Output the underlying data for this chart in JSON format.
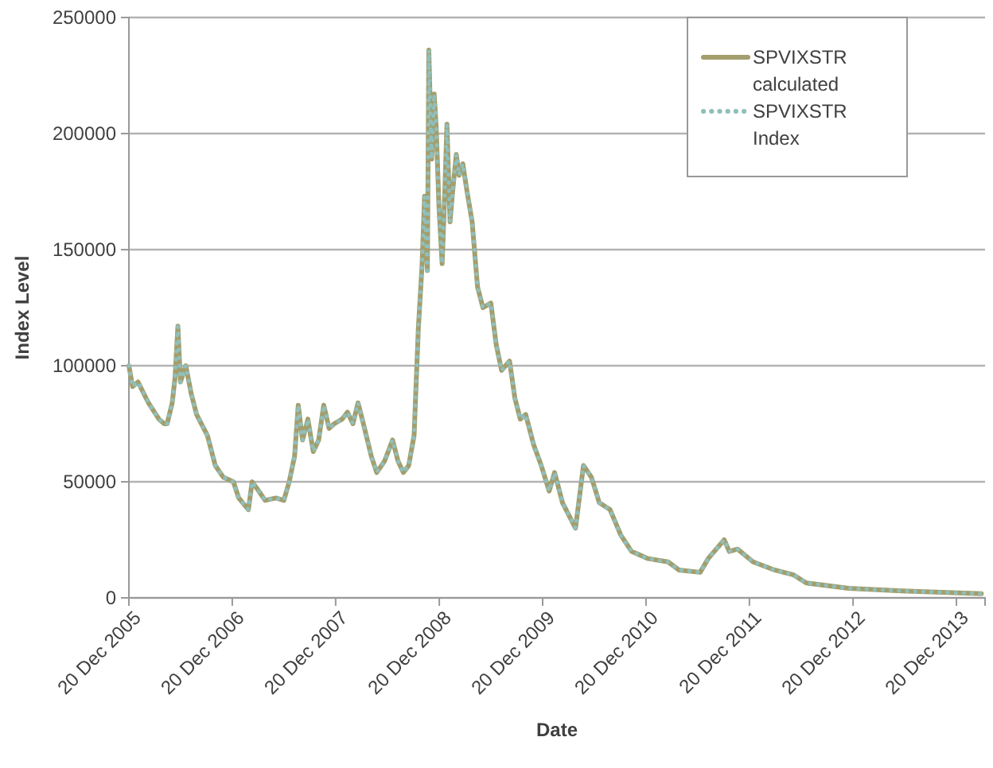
{
  "chart_data": {
    "type": "line",
    "xlabel": "Date",
    "ylabel": "Index Level",
    "x": [
      "2005-12-20",
      "2006-01-02",
      "2006-01-21",
      "2006-02-27",
      "2006-04-05",
      "2006-04-24",
      "2006-05-04",
      "2006-05-22",
      "2006-06-01",
      "2006-06-11",
      "2006-06-20",
      "2006-07-09",
      "2006-07-28",
      "2006-08-16",
      "2006-09-23",
      "2006-10-21",
      "2006-11-18",
      "2006-12-24",
      "2007-01-12",
      "2007-02-15",
      "2007-02-28",
      "2007-03-18",
      "2007-04-15",
      "2007-05-23",
      "2007-06-20",
      "2007-07-09",
      "2007-07-28",
      "2007-08-10",
      "2007-08-25",
      "2007-09-13",
      "2007-10-02",
      "2007-10-21",
      "2007-11-08",
      "2007-11-27",
      "2007-12-15",
      "2008-01-12",
      "2008-01-31",
      "2008-02-19",
      "2008-03-08",
      "2008-03-27",
      "2008-04-24",
      "2008-05-13",
      "2008-06-10",
      "2008-07-08",
      "2008-07-27",
      "2008-08-15",
      "2008-09-03",
      "2008-09-22",
      "2008-10-07",
      "2008-10-20",
      "2008-10-29",
      "2008-11-08",
      "2008-11-13",
      "2008-11-23",
      "2008-12-02",
      "2008-12-09",
      "2008-12-19",
      "2008-12-30",
      "2009-01-08",
      "2009-01-16",
      "2009-01-27",
      "2009-02-05",
      "2009-02-18",
      "2009-02-28",
      "2009-03-13",
      "2009-03-28",
      "2009-04-15",
      "2009-05-04",
      "2009-05-23",
      "2009-06-20",
      "2009-07-09",
      "2009-07-28",
      "2009-08-25",
      "2009-09-13",
      "2009-10-02",
      "2009-10-21",
      "2009-11-18",
      "2009-12-15",
      "2010-01-12",
      "2010-01-31",
      "2010-02-28",
      "2010-04-15",
      "2010-05-13",
      "2010-06-10",
      "2010-07-08",
      "2010-08-15",
      "2010-09-22",
      "2010-10-30",
      "2010-12-24",
      "2011-03-08",
      "2011-04-15",
      "2011-06-29",
      "2011-07-28",
      "2011-09-22",
      "2011-10-10",
      "2011-11-08",
      "2012-01-02",
      "2012-03-18",
      "2012-05-22",
      "2012-07-08",
      "2012-12-05",
      "2013-06-10",
      "2014-03-18"
    ],
    "series": [
      {
        "name": "SPVIXSTR calculated",
        "color": "#a39e6c",
        "line_style": "solid",
        "values": [
          100000,
          91000,
          93000,
          84000,
          77000,
          75000,
          75000,
          84000,
          95000,
          117000,
          93000,
          100000,
          88000,
          79000,
          70000,
          57000,
          52000,
          50000,
          43000,
          38000,
          50000,
          47000,
          42000,
          43000,
          42000,
          50000,
          61000,
          83000,
          68000,
          77000,
          63000,
          68000,
          83000,
          73000,
          75000,
          77000,
          80000,
          75000,
          84000,
          75000,
          61000,
          54000,
          59000,
          68000,
          59000,
          54000,
          57000,
          70000,
          116000,
          143000,
          173000,
          141000,
          236000,
          189000,
          217000,
          203000,
          168000,
          144000,
          173000,
          204000,
          162000,
          175000,
          191000,
          182000,
          187000,
          175000,
          162000,
          134000,
          125000,
          127000,
          109000,
          98000,
          102000,
          86000,
          77000,
          79000,
          66000,
          57000,
          46000,
          54000,
          41000,
          30000,
          57000,
          52000,
          41000,
          38000,
          27000,
          20000,
          17000,
          15500,
          12000,
          11000,
          17000,
          25000,
          20000,
          21000,
          15500,
          12000,
          10000,
          6400,
          4100,
          3000,
          1800
        ]
      },
      {
        "name": "SPVIXSTR Index",
        "color": "#8fbfbb",
        "line_style": "dotted",
        "values": [
          100000,
          91000,
          93000,
          84000,
          77000,
          75000,
          75000,
          84000,
          95000,
          117000,
          93000,
          100000,
          88000,
          79000,
          70000,
          57000,
          52000,
          50000,
          43000,
          38000,
          50000,
          47000,
          42000,
          43000,
          42000,
          50000,
          61000,
          83000,
          68000,
          77000,
          63000,
          68000,
          83000,
          73000,
          75000,
          77000,
          80000,
          75000,
          84000,
          75000,
          61000,
          54000,
          59000,
          68000,
          59000,
          54000,
          57000,
          70000,
          116000,
          143000,
          173000,
          141000,
          236000,
          189000,
          217000,
          203000,
          168000,
          144000,
          173000,
          204000,
          162000,
          175000,
          191000,
          182000,
          187000,
          175000,
          162000,
          134000,
          125000,
          127000,
          109000,
          98000,
          102000,
          86000,
          77000,
          79000,
          66000,
          57000,
          46000,
          54000,
          41000,
          30000,
          57000,
          52000,
          41000,
          38000,
          27000,
          20000,
          17000,
          15500,
          12000,
          11000,
          17000,
          25000,
          20000,
          21000,
          15500,
          12000,
          10000,
          6400,
          4100,
          3000,
          1800
        ]
      }
    ],
    "xlim": [
      "2005-12-20",
      "2014-03-31"
    ],
    "xticks": [
      {
        "value": "2005-12-20",
        "label": "20 Dec 2005"
      },
      {
        "value": "2006-12-20",
        "label": "20 Dec 2006"
      },
      {
        "value": "2007-12-20",
        "label": "20 Dec 2007"
      },
      {
        "value": "2008-12-20",
        "label": "20 Dec 2008"
      },
      {
        "value": "2009-12-20",
        "label": "20 Dec 2009"
      },
      {
        "value": "2010-12-20",
        "label": "20 Dec 2010"
      },
      {
        "value": "2011-12-20",
        "label": "20 Dec 2011"
      },
      {
        "value": "2012-12-20",
        "label": "20 Dec 2012"
      },
      {
        "value": "2013-12-20",
        "label": "20 Dec 2013"
      }
    ],
    "ylim": [
      0,
      250000
    ],
    "yticks": [
      0,
      50000,
      100000,
      150000,
      200000,
      250000
    ],
    "grid": "y",
    "legend": "top right",
    "marker": "none"
  }
}
